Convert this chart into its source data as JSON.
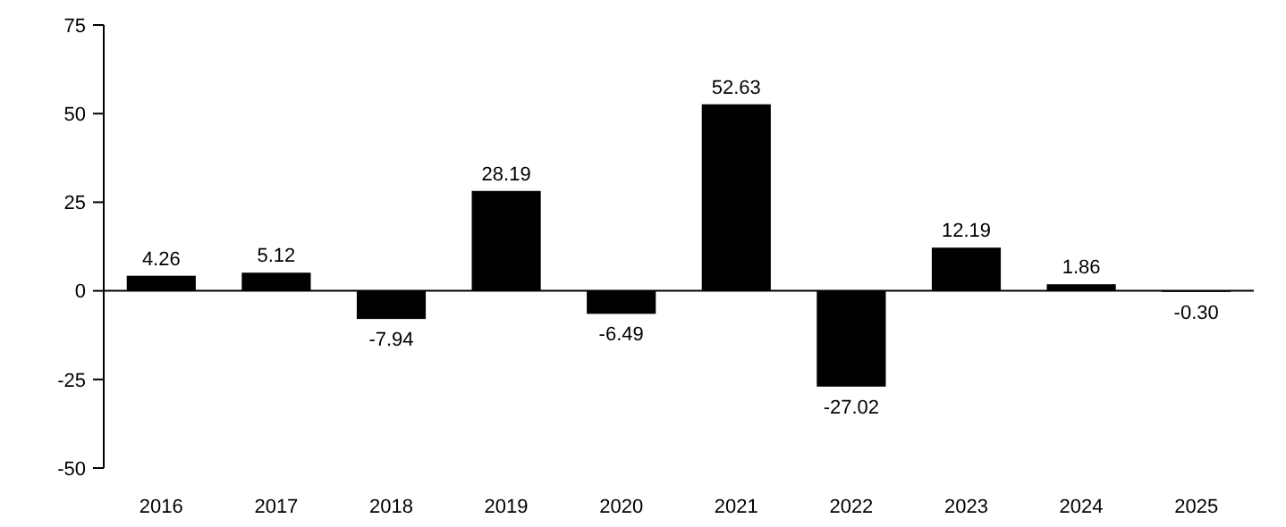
{
  "chart_data": {
    "type": "bar",
    "categories": [
      "2016",
      "2017",
      "2018",
      "2019",
      "2020",
      "2021",
      "2022",
      "2023",
      "2024",
      "2025"
    ],
    "values": [
      4.26,
      5.12,
      -7.94,
      28.19,
      -6.49,
      52.63,
      -27.02,
      12.19,
      1.86,
      -0.3
    ],
    "value_labels": [
      "4.26",
      "5.12",
      "-7.94",
      "28.19",
      "-6.49",
      "52.63",
      "-27.02",
      "12.19",
      "1.86",
      "-0.30"
    ],
    "color": "#000000",
    "ylim": [
      -50,
      75
    ],
    "yticks": [
      -50,
      -25,
      0,
      25,
      50,
      75
    ]
  }
}
